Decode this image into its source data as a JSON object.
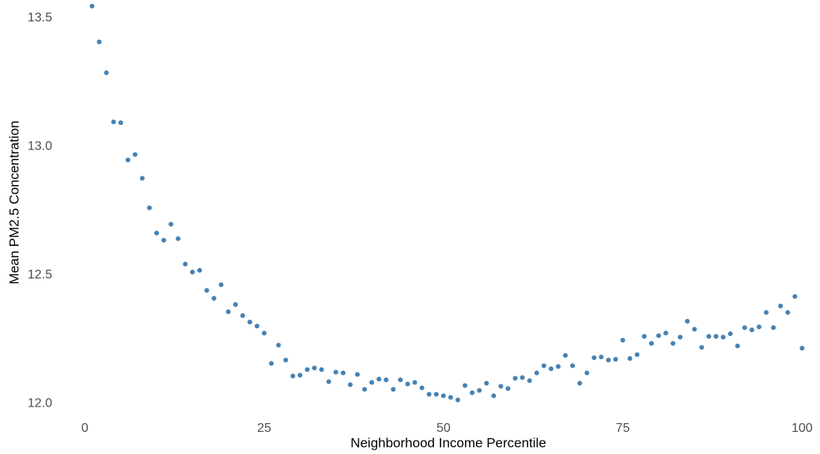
{
  "chart_data": {
    "type": "scatter",
    "x_label": "Neighborhood Income Percentile",
    "y_label": "Mean PM2.5 Concentration",
    "x": [
      1,
      2,
      3,
      4,
      5,
      6,
      7,
      8,
      9,
      10,
      11,
      12,
      13,
      14,
      15,
      16,
      17,
      18,
      19,
      20,
      21,
      22,
      23,
      24,
      25,
      26,
      27,
      28,
      29,
      30,
      31,
      32,
      33,
      34,
      35,
      36,
      37,
      38,
      39,
      40,
      41,
      42,
      43,
      44,
      45,
      46,
      47,
      48,
      49,
      50,
      51,
      52,
      53,
      54,
      55,
      56,
      57,
      58,
      59,
      60,
      61,
      62,
      63,
      64,
      65,
      66,
      67,
      68,
      69,
      70,
      71,
      72,
      73,
      74,
      75,
      76,
      77,
      78,
      79,
      80,
      81,
      82,
      83,
      84,
      85,
      86,
      87,
      88,
      89,
      90,
      91,
      92,
      93,
      94,
      95,
      96,
      97,
      98,
      99,
      100
    ],
    "values": [
      13.546,
      13.407,
      13.287,
      13.096,
      13.093,
      12.948,
      12.969,
      12.877,
      12.762,
      12.664,
      12.636,
      12.698,
      12.642,
      12.543,
      12.512,
      12.519,
      12.441,
      12.41,
      12.463,
      12.358,
      12.386,
      12.343,
      12.318,
      12.302,
      12.275,
      12.157,
      12.228,
      12.17,
      12.108,
      12.111,
      12.133,
      12.139,
      12.133,
      12.086,
      12.123,
      12.12,
      12.074,
      12.114,
      12.056,
      12.083,
      12.096,
      12.093,
      12.056,
      12.093,
      12.077,
      12.083,
      12.062,
      12.037,
      12.037,
      12.031,
      12.025,
      12.015,
      12.071,
      12.043,
      12.052,
      12.08,
      12.031,
      12.068,
      12.059,
      12.099,
      12.102,
      12.09,
      12.12,
      12.148,
      12.136,
      12.145,
      12.188,
      12.148,
      12.08,
      12.12,
      12.179,
      12.182,
      12.17,
      12.173,
      12.247,
      12.176,
      12.191,
      12.262,
      12.235,
      12.265,
      12.275,
      12.235,
      12.259,
      12.321,
      12.29,
      12.219,
      12.262,
      12.262,
      12.259,
      12.272,
      12.225,
      12.296,
      12.287,
      12.299,
      12.355,
      12.296,
      12.38,
      12.355,
      12.417,
      12.216
    ],
    "color": "#4682b4",
    "xlim": [
      -5,
      102.5
    ],
    "ylim": [
      11.94,
      13.57
    ],
    "xticks": [
      0,
      25,
      50,
      75,
      100
    ],
    "yticks": [
      {
        "value": 12.0,
        "label": "12.0"
      },
      {
        "value": 12.5,
        "label": "12.5"
      },
      {
        "value": 13.0,
        "label": "13.0"
      },
      {
        "value": 13.5,
        "label": "13.5"
      }
    ],
    "grid": false
  }
}
